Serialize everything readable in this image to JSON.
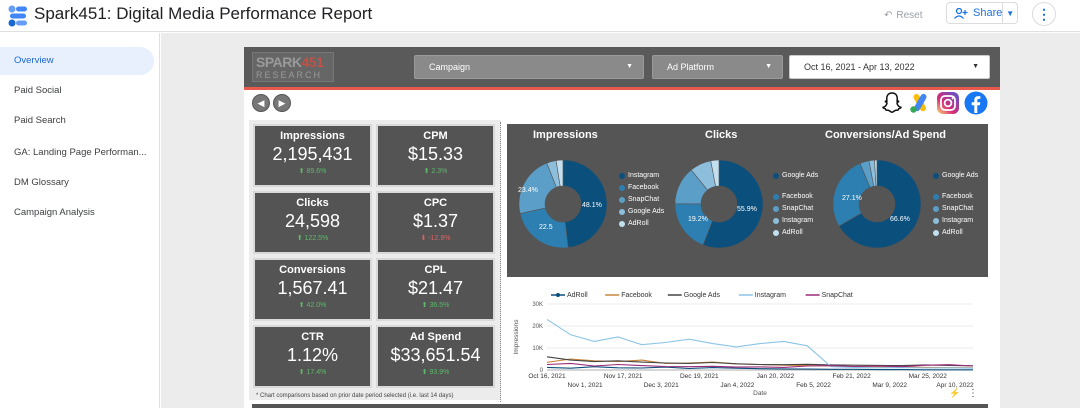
{
  "app": {
    "title": "Spark451: Digital Media Performance Report",
    "reset_label": "Reset",
    "share_label": "Share"
  },
  "sidebar": {
    "items": [
      {
        "label": "Overview",
        "active": true
      },
      {
        "label": "Paid Social",
        "active": false
      },
      {
        "label": "Paid Search",
        "active": false
      },
      {
        "label": "GA: Landing Page Performan...",
        "active": false
      },
      {
        "label": "DM Glossary",
        "active": false
      },
      {
        "label": "Campaign Analysis",
        "active": false
      }
    ]
  },
  "header": {
    "brand_line1": "SPARK",
    "brand_line1_accent": "451",
    "brand_line2": "RESEARCH",
    "filters": {
      "campaign": "Campaign",
      "ad_platform": "Ad Platform",
      "date_range": "Oct 16, 2021 - Apr 13, 2022"
    }
  },
  "platform_icons": [
    "snapchat-icon",
    "google-ads-icon",
    "instagram-icon",
    "facebook-icon"
  ],
  "kpis": [
    {
      "label": "Impressions",
      "value": "2,195,431",
      "delta": "89.6%",
      "direction": "up"
    },
    {
      "label": "CPM",
      "value": "$15.33",
      "delta": "2.3%",
      "direction": "up"
    },
    {
      "label": "Clicks",
      "value": "24,598",
      "delta": "122.5%",
      "direction": "up"
    },
    {
      "label": "CPC",
      "value": "$1.37",
      "delta": "-12.9%",
      "direction": "down"
    },
    {
      "label": "Conversions",
      "value": "1,567.41",
      "delta": "42.0%",
      "direction": "up"
    },
    {
      "label": "CPL",
      "value": "$21.47",
      "delta": "36.5%",
      "direction": "up"
    },
    {
      "label": "CTR",
      "value": "1.12%",
      "delta": "17.4%",
      "direction": "up"
    },
    {
      "label": "Ad Spend",
      "value": "$33,651.54",
      "delta": "93.9%",
      "direction": "up"
    }
  ],
  "footnote": "* Chart comparisons based on prior date period selected (i.e. last 14 days)",
  "chart_data": [
    {
      "type": "pie",
      "title": "Impressions",
      "labels": [
        "Instagram",
        "Facebook",
        "SnapChat",
        "Google Ads",
        "AdRoll"
      ],
      "values": [
        48.1,
        23.4,
        22.5,
        3.5,
        2.5
      ],
      "slice_labels": [
        "48.1%",
        "23.4%",
        "22.5",
        "",
        ""
      ],
      "colors": [
        "#0b4f7c",
        "#2c7fb0",
        "#5b9fc8",
        "#8dbedc",
        "#c2dff0"
      ]
    },
    {
      "type": "pie",
      "title": "Clicks",
      "labels": [
        "Google Ads",
        "Facebook",
        "SnapChat",
        "Instagram",
        "AdRoll"
      ],
      "values": [
        55.9,
        19.2,
        14.0,
        7.9,
        3.0
      ],
      "slice_labels": [
        "55.9%",
        "19.2%",
        "",
        "",
        ""
      ],
      "colors": [
        "#0b4f7c",
        "#2c7fb0",
        "#5b9fc8",
        "#8dbedc",
        "#c2dff0"
      ]
    },
    {
      "type": "pie",
      "title": "Conversions/Ad Spend",
      "labels": [
        "Google Ads",
        "Facebook",
        "SnapChat",
        "Instagram",
        "AdRoll"
      ],
      "values": [
        66.6,
        27.1,
        3.4,
        2.0,
        0.9
      ],
      "slice_labels": [
        "66.6%",
        "27.1%",
        "",
        "",
        ""
      ],
      "colors": [
        "#0b4f7c",
        "#2c7fb0",
        "#5b9fc8",
        "#8dbedc",
        "#c2dff0"
      ]
    },
    {
      "type": "line",
      "xlabel": "Date",
      "ylabel": "Impressions",
      "ylim": [
        0,
        30000
      ],
      "yticks": [
        "0",
        "10K",
        "20K",
        "30K"
      ],
      "xticks_top": [
        "Oct 16, 2021",
        "Nov 17, 2021",
        "Dec 19, 2021",
        "Jan 20, 2022",
        "Feb 21, 2022",
        "Mar 25, 2022"
      ],
      "xticks_bottom": [
        "Nov 1, 2021",
        "Dec 3, 2021",
        "Jan 4, 2022",
        "Feb 5, 2022",
        "Mar 9, 2022",
        "Apr 10, 2022"
      ],
      "x_start": "2021-10-16",
      "x_end": "2022-04-13",
      "series": [
        {
          "name": "AdRoll",
          "color": "#0b4f7c",
          "values": [
            1200,
            800,
            1500,
            1000,
            900,
            1300,
            700,
            1100,
            800,
            600,
            500,
            400,
            300,
            300,
            200,
            200,
            100,
            100,
            100
          ]
        },
        {
          "name": "Facebook",
          "color": "#c9863b",
          "values": [
            3500,
            5000,
            4200,
            3800,
            4500,
            3000,
            3200,
            3600,
            2800,
            2500,
            2200,
            2000,
            1800,
            1600,
            1500,
            1400,
            1200,
            1100,
            1000
          ]
        },
        {
          "name": "Google Ads",
          "color": "#444444",
          "values": [
            6000,
            4500,
            3800,
            4200,
            3600,
            3200,
            3000,
            3400,
            2800,
            2500,
            2400,
            2600,
            2300,
            2200,
            2100,
            2000,
            2300,
            2100,
            1900
          ]
        },
        {
          "name": "Instagram",
          "color": "#8cc4e6",
          "values": [
            23000,
            16000,
            13000,
            15000,
            11500,
            12500,
            14000,
            12000,
            10500,
            12000,
            13000,
            11000,
            1500,
            1200,
            1000,
            1100,
            900,
            1000,
            800
          ]
        },
        {
          "name": "SnapChat",
          "color": "#9a2a7a",
          "values": [
            2500,
            3000,
            1800,
            2500,
            2000,
            1600,
            1500,
            1700,
            1300,
            1400,
            1200,
            1800,
            2000,
            1600,
            1800,
            1500,
            2200,
            2400,
            1800
          ]
        }
      ]
    }
  ]
}
